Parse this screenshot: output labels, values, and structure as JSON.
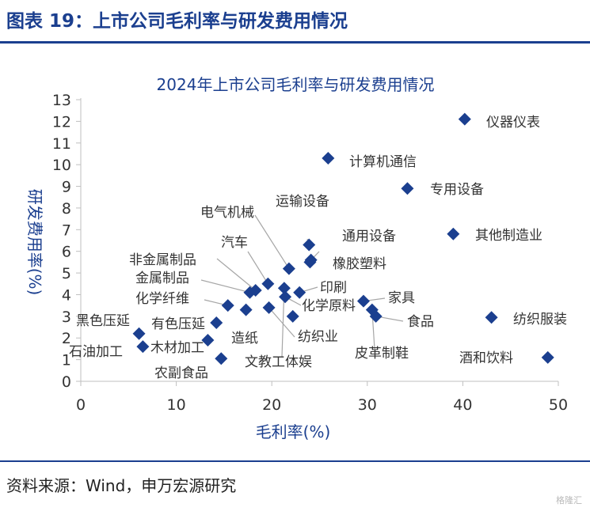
{
  "figure_title": "图表 19：上市公司毛利率与研发费用情况",
  "source": "资料来源：Wind，申万宏源研究",
  "watermark": "格隆汇",
  "colors": {
    "accent": "#1b3f8f",
    "marker": "#1b3f8f",
    "leader": "#a6a6a6"
  },
  "chart_data": {
    "type": "scatter",
    "title": "2024年上市公司毛利率与研发费用情况",
    "xlabel": "毛利率(%)",
    "ylabel": "研发费用率(%)",
    "xlim": [
      0,
      50
    ],
    "ylim": [
      0,
      13
    ],
    "xticks": [
      0,
      10,
      20,
      30,
      40,
      50
    ],
    "yticks": [
      0,
      1,
      2,
      3,
      4,
      5,
      6,
      7,
      8,
      9,
      10,
      11,
      12,
      13
    ],
    "marker": "diamond",
    "grid": false,
    "points": [
      {
        "label": "仪器仪表",
        "x": 40.2,
        "y": 12.1
      },
      {
        "label": "计算机通信",
        "x": 25.9,
        "y": 10.3
      },
      {
        "label": "专用设备",
        "x": 34.2,
        "y": 8.9
      },
      {
        "label": "其他制造业",
        "x": 39.0,
        "y": 6.8
      },
      {
        "label": "运输设备",
        "x": 23.9,
        "y": 6.3
      },
      {
        "label": "通用设备",
        "x": 24.1,
        "y": 5.6
      },
      {
        "label": "橡胶塑料",
        "x": 24.0,
        "y": 5.5
      },
      {
        "label": "电气机械",
        "x": 21.8,
        "y": 5.2
      },
      {
        "label": "汽车",
        "x": 19.6,
        "y": 4.5
      },
      {
        "label": "非金属制品",
        "x": 18.3,
        "y": 4.2
      },
      {
        "label": "金属制品",
        "x": 17.7,
        "y": 4.1
      },
      {
        "label": "印刷",
        "x": 22.9,
        "y": 4.1
      },
      {
        "label": "文教工体娱",
        "x": 21.3,
        "y": 4.3
      },
      {
        "label": "化学原料",
        "x": 21.4,
        "y": 3.9
      },
      {
        "label": "化学纤维",
        "x": 15.4,
        "y": 3.5
      },
      {
        "label": "家具",
        "x": 29.6,
        "y": 3.7
      },
      {
        "label": "皮革制鞋",
        "x": 30.5,
        "y": 3.3
      },
      {
        "label": "食品",
        "x": 30.9,
        "y": 3.0
      },
      {
        "label": "造纸",
        "x": 17.3,
        "y": 3.3
      },
      {
        "label": "纺织业",
        "x": 19.7,
        "y": 3.4
      },
      {
        "label": "纺织服装",
        "x": 43.0,
        "y": 2.95
      },
      {
        "label": "黑色压延",
        "x": 6.1,
        "y": 2.2
      },
      {
        "label": "有色压延",
        "x": 14.2,
        "y": 2.7
      },
      {
        "label": "石油加工",
        "x": 6.5,
        "y": 1.6
      },
      {
        "label": "木材加工",
        "x": 13.3,
        "y": 1.9
      },
      {
        "label": "农副食品",
        "x": 14.7,
        "y": 1.05
      },
      {
        "label": "酒和饮料",
        "x": 48.9,
        "y": 1.1
      },
      {
        "label": "",
        "x": 22.2,
        "y": 3.0
      }
    ]
  }
}
